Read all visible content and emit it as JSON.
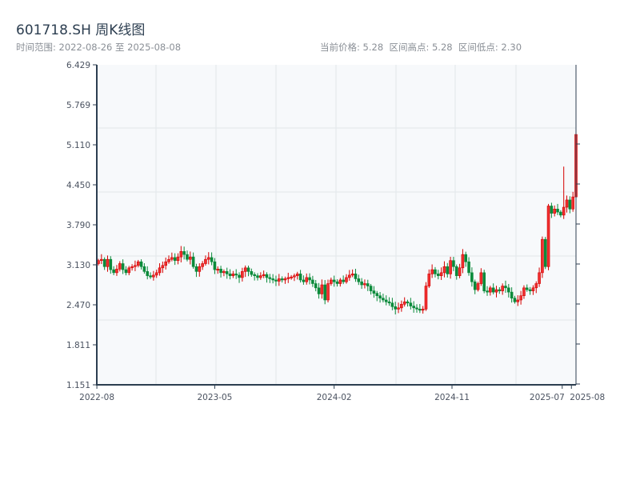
{
  "header": {
    "title": "601718.SH 周K线图",
    "range_text": "时间范围: 2022-08-26 至 2025-08-08",
    "stats_text": "当前价格: 5.28  区间高点: 5.28  区间低点: 2.30"
  },
  "colors": {
    "up": "#d40000",
    "up_fill": "#f03030",
    "down": "#0a8a3a",
    "plot_bg": "#f7f9fb",
    "grid": "#e2e6ea",
    "axis": "#2c3e50"
  },
  "chart_data": {
    "type": "candlestick",
    "title": "601718.SH 周K线图",
    "start_date": "2022-08-26",
    "end_date": "2025-08-08",
    "interval": "weekly",
    "ylim": [
      1.151,
      6.429
    ],
    "y_ticks": [
      "6.429",
      "5.769",
      "5.110",
      "4.450",
      "3.790",
      "3.130",
      "2.470",
      "1.811",
      "1.151"
    ],
    "x_ticks": [
      {
        "label": "2022-08",
        "index": -0.5
      },
      {
        "label": "2023-05",
        "index": 38
      },
      {
        "label": "2024-02",
        "index": 77
      },
      {
        "label": "2024-11",
        "index": 115.5
      },
      {
        "label": "2025-07",
        "index": 151.5
      },
      {
        "label": "2025-08",
        "index": 154.5
      }
    ],
    "first_open": 3.15,
    "close": [
      3.2,
      3.22,
      3.1,
      3.22,
      3.05,
      3.0,
      3.06,
      3.15,
      3.05,
      3.0,
      3.08,
      3.1,
      3.12,
      3.18,
      3.1,
      3.02,
      2.95,
      2.93,
      2.96,
      3.0,
      3.08,
      3.12,
      3.18,
      3.22,
      3.25,
      3.2,
      3.26,
      3.35,
      3.3,
      3.22,
      3.26,
      3.1,
      3.02,
      3.1,
      3.15,
      3.22,
      3.25,
      3.18,
      3.05,
      3.06,
      3.0,
      3.02,
      2.98,
      2.95,
      2.98,
      2.96,
      2.92,
      3.02,
      3.08,
      3.02,
      2.97,
      2.95,
      2.92,
      2.95,
      2.97,
      2.92,
      2.9,
      2.88,
      2.86,
      2.9,
      2.88,
      2.9,
      2.92,
      2.93,
      2.95,
      2.98,
      2.88,
      2.85,
      2.92,
      2.88,
      2.82,
      2.75,
      2.65,
      2.8,
      2.55,
      2.82,
      2.88,
      2.85,
      2.82,
      2.88,
      2.85,
      2.92,
      2.96,
      2.98,
      2.9,
      2.85,
      2.8,
      2.82,
      2.78,
      2.7,
      2.66,
      2.62,
      2.58,
      2.55,
      2.52,
      2.5,
      2.44,
      2.4,
      2.42,
      2.48,
      2.52,
      2.5,
      2.45,
      2.42,
      2.4,
      2.38,
      2.4,
      2.78,
      2.98,
      3.05,
      2.98,
      2.95,
      3.0,
      3.1,
      2.98,
      3.2,
      3.1,
      2.95,
      3.08,
      3.3,
      3.18,
      3.0,
      2.85,
      2.72,
      2.82,
      3.0,
      2.7,
      2.68,
      2.75,
      2.68,
      2.72,
      2.7,
      2.78,
      2.75,
      2.68,
      2.58,
      2.52,
      2.55,
      2.62,
      2.75,
      2.72,
      2.7,
      2.75,
      2.82,
      3.0,
      3.55,
      3.1,
      4.1,
      3.98,
      4.05,
      4.0,
      3.95,
      4.08,
      4.2,
      4.05,
      4.25,
      5.28
    ],
    "final_high": 5.28,
    "period_low": 2.3
  }
}
